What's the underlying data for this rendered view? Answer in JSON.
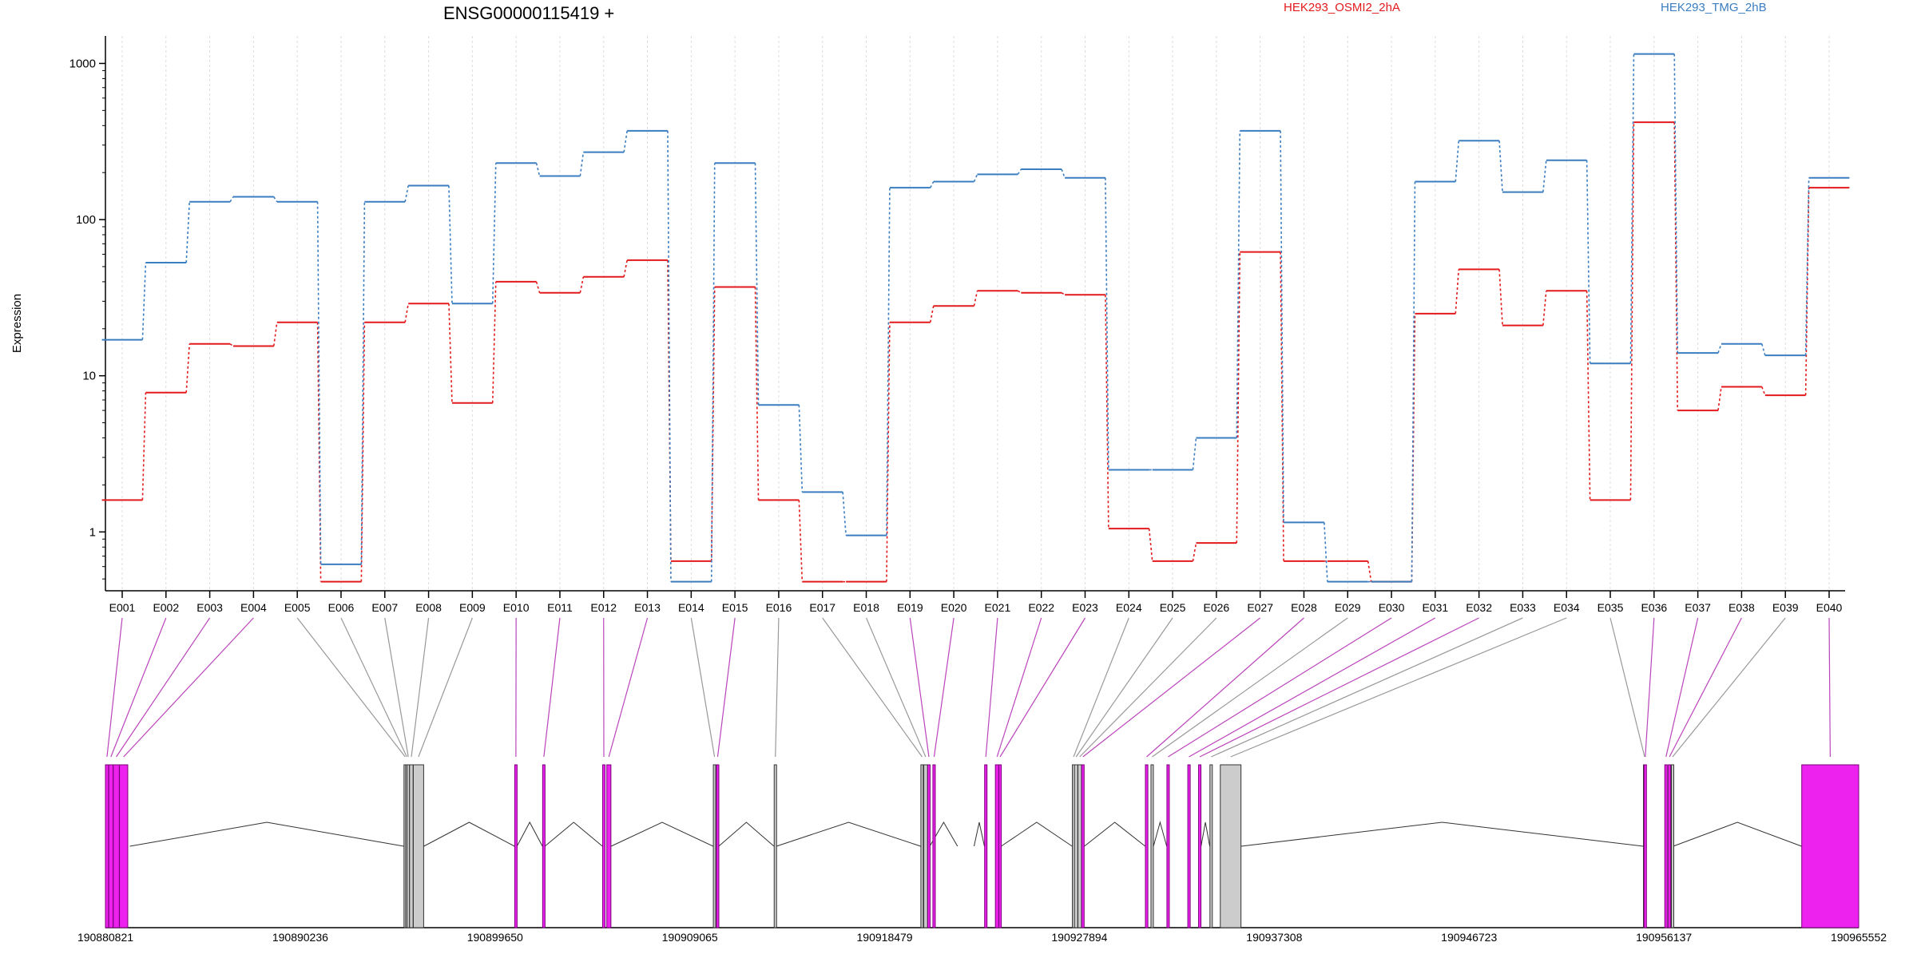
{
  "chart_data": {
    "type": "line",
    "title": "ENSG00000115419 +",
    "ylabel": "Expression",
    "y_scale": "log",
    "ylim": [
      0.42,
      1500
    ],
    "y_ticks": [
      1,
      10,
      100,
      1000
    ],
    "y_tick_labels": [
      "1",
      "10",
      "100",
      "1000"
    ],
    "grid": "vertical dotted lines at each exon",
    "legend_placement": "top, right of title",
    "categories": [
      "E001",
      "E002",
      "E003",
      "E004",
      "E005",
      "E006",
      "E007",
      "E008",
      "E009",
      "E010",
      "E011",
      "E012",
      "E013",
      "E014",
      "E015",
      "E016",
      "E017",
      "E018",
      "E019",
      "E020",
      "E021",
      "E022",
      "E023",
      "E024",
      "E025",
      "E026",
      "E027",
      "E028",
      "E029",
      "E030",
      "E031",
      "E032",
      "E033",
      "E034",
      "E035",
      "E036",
      "E037",
      "E038",
      "E039",
      "E040"
    ],
    "series": [
      {
        "name": "HEK293_OSMI2_2hA",
        "color": "#e31a1c",
        "values": [
          1.6,
          7.8,
          16,
          15.5,
          22,
          0.48,
          22,
          29,
          6.7,
          40,
          34,
          43,
          55,
          0.65,
          37,
          1.6,
          0.48,
          0.48,
          22,
          28,
          35,
          34,
          33,
          1.05,
          0.65,
          0.85,
          62,
          0.65,
          0.65,
          0.48,
          25,
          48,
          21,
          35,
          1.6,
          420,
          6,
          8.5,
          7.5,
          160
        ]
      },
      {
        "name": "HEK293_TMG_2hB",
        "color": "#3a7dc0",
        "values": [
          17,
          53,
          130,
          140,
          130,
          0.62,
          130,
          165,
          29,
          230,
          190,
          270,
          370,
          0.48,
          230,
          6.5,
          1.8,
          0.95,
          160,
          175,
          195,
          210,
          185,
          2.5,
          2.5,
          4,
          370,
          1.15,
          0.48,
          0.48,
          175,
          320,
          150,
          240,
          12,
          1150,
          14,
          16,
          13.5,
          185
        ]
      }
    ],
    "gene_model": {
      "coord_range": [
        190880821,
        190965552
      ],
      "coord_ticks": [
        "190880821",
        "190890236",
        "190899650",
        "190909065",
        "190918479",
        "190927894",
        "190937308",
        "190946723",
        "190956137",
        "190965552"
      ],
      "exon_starts": [
        190880821,
        190880980,
        190881200,
        190881500,
        190895250,
        190895330,
        190895400,
        190895520,
        190895700,
        190900600,
        190901950,
        190904850,
        190905050,
        190910200,
        190910350,
        190913140,
        190920230,
        190920370,
        190920560,
        190920810,
        190923310,
        190923830,
        190924000,
        190927550,
        190927650,
        190927820,
        190928000,
        190931080,
        190931350,
        190932120,
        190933130,
        190933650,
        190934200,
        190934700,
        190955150,
        190955180,
        190956180,
        190956350,
        190956500,
        190962800
      ],
      "exon_ends": [
        190880970,
        190881190,
        190881490,
        190881900,
        190895320,
        190895390,
        190895510,
        190895690,
        190896200,
        190900700,
        190902050,
        190904950,
        190905250,
        190910300,
        190910450,
        190913240,
        190920330,
        190920550,
        190920650,
        190920900,
        190923400,
        190923990,
        190924100,
        190927640,
        190927810,
        190927990,
        190928120,
        190931200,
        190931460,
        190932220,
        190933220,
        190933760,
        190934300,
        190935700,
        190955220,
        190955260,
        190956300,
        190956460,
        190956580,
        190965552
      ],
      "highlighted": [
        true,
        true,
        true,
        true,
        false,
        false,
        false,
        false,
        false,
        true,
        true,
        true,
        true,
        false,
        true,
        false,
        false,
        false,
        true,
        true,
        true,
        true,
        true,
        false,
        false,
        false,
        true,
        true,
        false,
        true,
        true,
        true,
        false,
        false,
        false,
        true,
        true,
        true,
        false,
        true
      ],
      "intron_junctions": [
        190882000,
        190895240,
        190896210,
        190900590,
        190900710,
        190901940,
        190902060,
        190904840,
        190905260,
        190910190,
        190910460,
        190913130,
        190913250,
        190920220,
        190920660,
        190922000,
        190922800,
        190923300,
        190924110,
        190927540,
        190928130,
        190931070,
        190931470,
        190932110,
        190933770,
        190934190,
        190935710,
        190955140,
        190956590,
        190962790
      ]
    }
  }
}
